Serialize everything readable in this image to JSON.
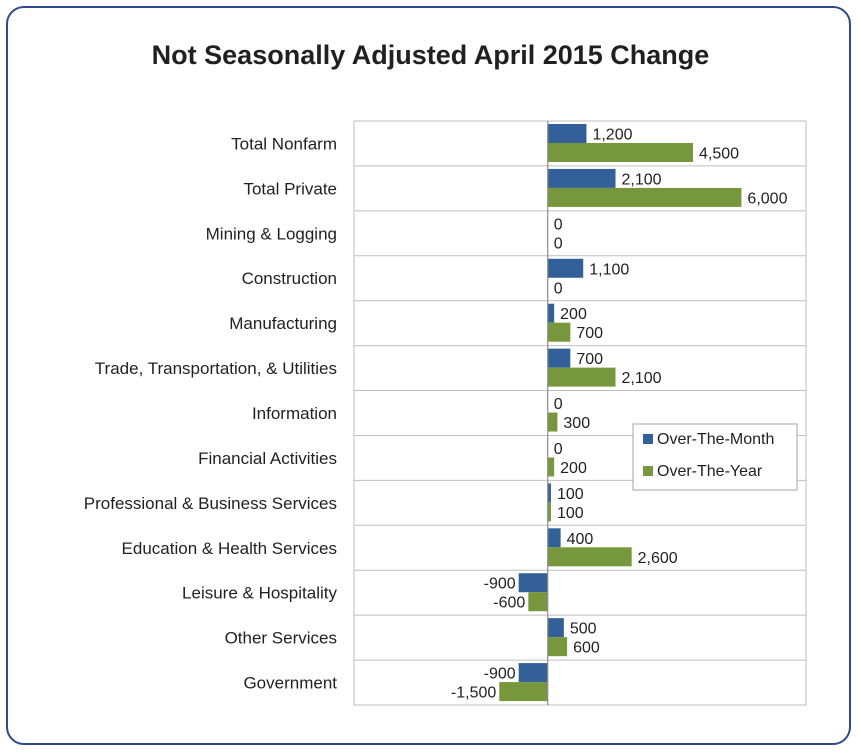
{
  "chart_data": {
    "type": "bar",
    "orientation": "horizontal",
    "title": "Not Seasonally Adjusted April 2015 Change",
    "categories": [
      "Total Nonfarm",
      "Total Private",
      "Mining & Logging",
      "Construction",
      "Manufacturing",
      "Trade, Transportation, & Utilities",
      "Information",
      "Financial Activities",
      "Professional & Business Services",
      "Education & Health Services",
      "Leisure & Hospitality",
      "Other Services",
      "Government"
    ],
    "series": [
      {
        "name": "Over-The-Month",
        "color": "#34609a",
        "values": [
          1200,
          2100,
          0,
          1100,
          200,
          700,
          0,
          0,
          100,
          400,
          -900,
          500,
          -900
        ],
        "labels": [
          "1,200",
          "2,100",
          "0",
          "1,100",
          "200",
          "700",
          "0",
          "0",
          "100",
          "400",
          "-900",
          "500",
          "-900"
        ]
      },
      {
        "name": "Over-The-Year",
        "color": "#77973d",
        "values": [
          4500,
          6000,
          0,
          0,
          700,
          2100,
          300,
          200,
          100,
          2600,
          -600,
          600,
          -1500
        ],
        "labels": [
          "4,500",
          "6,000",
          "0",
          "0",
          "700",
          "2,100",
          "300",
          "200",
          "100",
          "2,600",
          "-600",
          "600",
          "-1,500"
        ]
      }
    ],
    "xlim": [
      -6000,
      8000
    ],
    "grid": true,
    "legend_position": "right-middle"
  }
}
